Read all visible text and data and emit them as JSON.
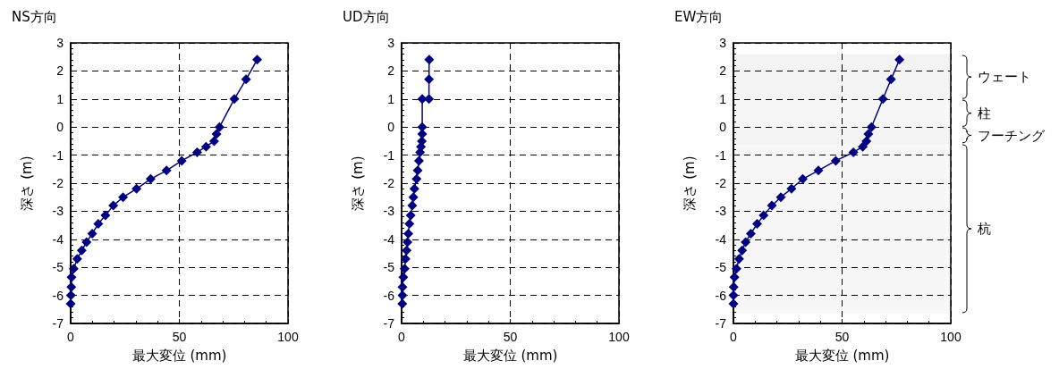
{
  "chart_data": [
    {
      "type": "line",
      "title": "NS方向",
      "xlabel": "最大変位 (mm)",
      "ylabel": "深さ (m)",
      "xlim": [
        0,
        100
      ],
      "xticks": [
        0,
        50,
        100
      ],
      "ylim": [
        -7,
        3
      ],
      "yticks": [
        -7,
        -6,
        -5,
        -4,
        -3,
        -2,
        -1,
        0,
        1,
        2,
        3
      ],
      "grid": true,
      "marker": "diamond",
      "line_style": "solid",
      "series": [
        {
          "color": "#000080",
          "x": [
            85.8,
            80.7,
            75.3,
            68.5,
            67.1,
            66.0,
            62.3,
            58.2,
            51.1,
            44.1,
            36.8,
            30.3,
            24.1,
            19.6,
            16.0,
            12.7,
            9.9,
            7.3,
            5.1,
            3.0,
            1.4,
            0.4,
            0.3,
            0.1,
            0
          ],
          "values": [
            2.4,
            1.7,
            1.0,
            0,
            -0.25,
            -0.5,
            -0.7,
            -0.9,
            -1.2,
            -1.55,
            -1.85,
            -2.2,
            -2.5,
            -2.8,
            -3.15,
            -3.45,
            -3.8,
            -4.1,
            -4.4,
            -4.7,
            -5.05,
            -5.35,
            -5.7,
            -6.0,
            -6.3
          ]
        }
      ]
    },
    {
      "type": "line",
      "title": "UD方向",
      "xlabel": "最大変位 (mm)",
      "ylabel": "深さ (m)",
      "xlim": [
        0,
        100
      ],
      "xticks": [
        0,
        50,
        100
      ],
      "ylim": [
        -7,
        3
      ],
      "yticks": [
        -7,
        -6,
        -5,
        -4,
        -3,
        -2,
        -1,
        0,
        1,
        2,
        3
      ],
      "grid": true,
      "marker": "diamond",
      "line_style": "solid",
      "series": [
        {
          "color": "#000080",
          "x": [
            12.7,
            12.6,
            12.6,
            9.5,
            9.5,
            9.5,
            9.3,
            8.9,
            8.5,
            8.0,
            7.4,
            6.9,
            5.9,
            5.4,
            4.9,
            4.2,
            3.6,
            3.1,
            2.7,
            2.3,
            1.8,
            1.4,
            0.8,
            0.4,
            0.4,
            0.3
          ],
          "values": [
            2.4,
            1.7,
            1.0,
            1.0,
            0,
            -0.25,
            -0.5,
            -0.7,
            -0.9,
            -1.2,
            -1.55,
            -1.85,
            -2.2,
            -2.5,
            -2.8,
            -3.15,
            -3.45,
            -3.8,
            -4.1,
            -4.4,
            -4.7,
            -5.05,
            -5.35,
            -5.7,
            -6.0,
            -6.3
          ]
        }
      ]
    },
    {
      "type": "line",
      "title": "EW方向",
      "xlabel": "最大変位 (mm)",
      "ylabel": "深さ (m)",
      "xlim": [
        0,
        100
      ],
      "xticks": [
        0,
        50,
        100
      ],
      "ylim": [
        -7,
        3
      ],
      "yticks": [
        -7,
        -6,
        -5,
        -4,
        -3,
        -2,
        -1,
        0,
        1,
        2,
        3
      ],
      "grid": true,
      "marker": "diamond",
      "line_style": "solid",
      "series": [
        {
          "color": "#000080",
          "x": [
            76.4,
            72.5,
            68.8,
            63.5,
            62.1,
            61.2,
            59.5,
            55.2,
            47.1,
            39.1,
            31.9,
            26.7,
            21.8,
            17.7,
            13.9,
            10.9,
            8.0,
            5.6,
            4.0,
            2.6,
            1.4,
            0.5,
            0.1,
            0,
            0
          ],
          "values": [
            2.4,
            1.7,
            1.0,
            0,
            -0.25,
            -0.5,
            -0.7,
            -0.9,
            -1.2,
            -1.55,
            -1.85,
            -2.2,
            -2.5,
            -2.8,
            -3.15,
            -3.45,
            -3.8,
            -4.1,
            -4.4,
            -4.7,
            -5.05,
            -5.35,
            -5.7,
            -6.0,
            -6.3
          ]
        }
      ],
      "bands": [
        {
          "axis": "y",
          "from": 1.0,
          "to": 2.6,
          "label": "ウェート",
          "color": "#f3f3f3"
        },
        {
          "axis": "y",
          "from": 0,
          "to": 1.0,
          "label": "柱",
          "color": "#f7f7f7"
        },
        {
          "axis": "y",
          "from": -0.6,
          "to": 0,
          "label": "フーチング",
          "color": "#f3f3f3"
        },
        {
          "axis": "y",
          "from": -6.65,
          "to": -0.6,
          "label": "杭",
          "color": "#f7f7f7"
        }
      ]
    }
  ]
}
